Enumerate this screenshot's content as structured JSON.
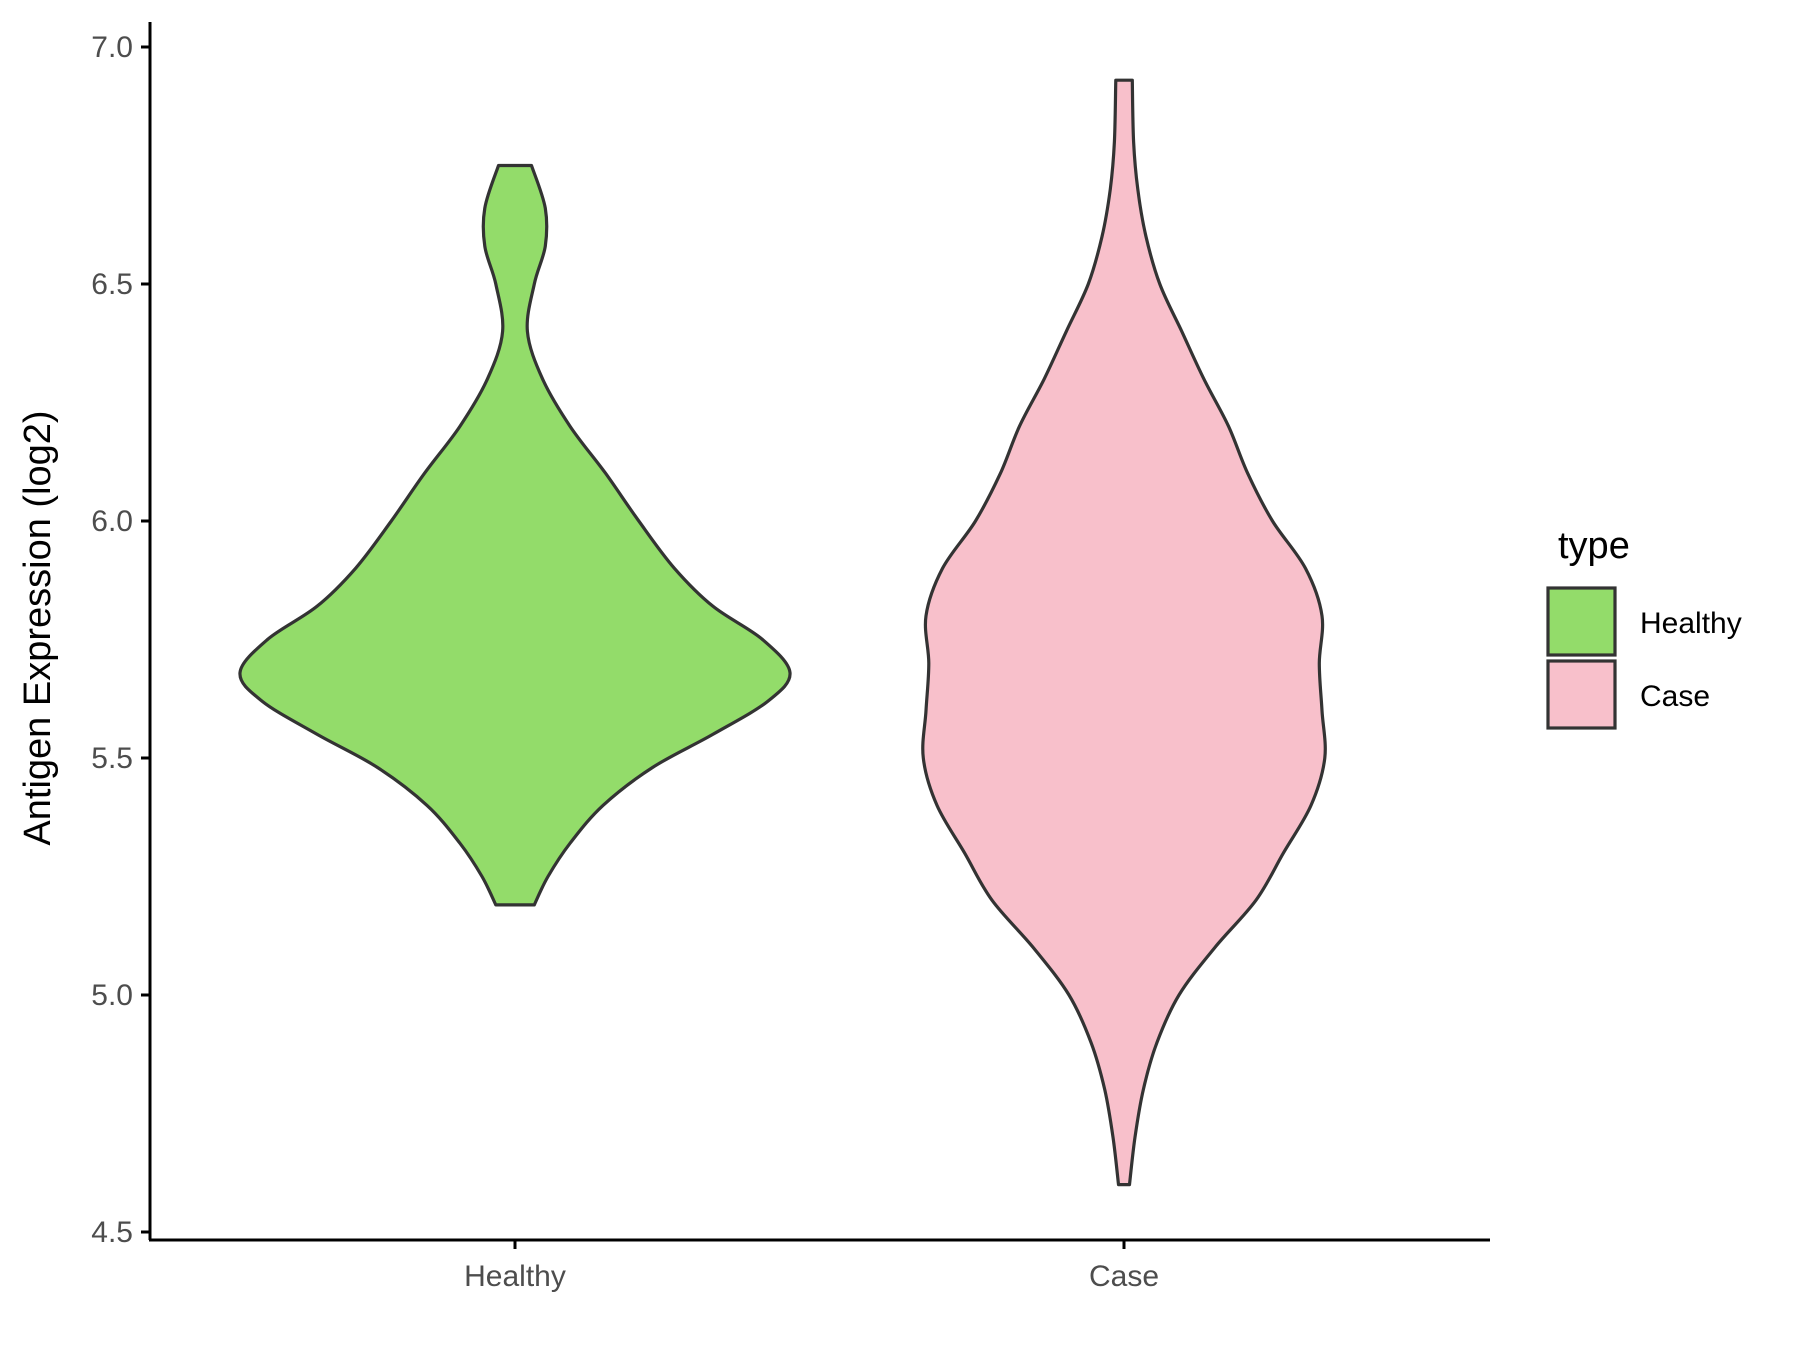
{
  "chart_data": {
    "type": "violin",
    "title": "",
    "xlabel": "",
    "ylabel": "Antigen Expression (log2)",
    "ylim": [
      4.5,
      7.0
    ],
    "yticks": [
      "4.5",
      "5.0",
      "5.5",
      "6.0",
      "6.5",
      "7.0"
    ],
    "categories": [
      "Healthy",
      "Case"
    ],
    "grid": false,
    "legend": {
      "title": "type",
      "position": "right"
    },
    "series": [
      {
        "name": "Healthy",
        "color": "#93dc6a",
        "min": 5.19,
        "max": 6.75,
        "density": [
          [
            5.19,
            0.07
          ],
          [
            5.25,
            0.12
          ],
          [
            5.32,
            0.2
          ],
          [
            5.4,
            0.32
          ],
          [
            5.48,
            0.5
          ],
          [
            5.55,
            0.72
          ],
          [
            5.62,
            0.92
          ],
          [
            5.68,
            1.0
          ],
          [
            5.75,
            0.9
          ],
          [
            5.82,
            0.72
          ],
          [
            5.9,
            0.58
          ],
          [
            6.0,
            0.45
          ],
          [
            6.1,
            0.33
          ],
          [
            6.2,
            0.2
          ],
          [
            6.3,
            0.1
          ],
          [
            6.4,
            0.045
          ],
          [
            6.5,
            0.07
          ],
          [
            6.58,
            0.11
          ],
          [
            6.66,
            0.11
          ],
          [
            6.75,
            0.06
          ]
        ]
      },
      {
        "name": "Case",
        "color": "#f8c0cb",
        "min": 4.6,
        "max": 6.93,
        "density": [
          [
            4.6,
            0.02
          ],
          [
            4.7,
            0.04
          ],
          [
            4.8,
            0.07
          ],
          [
            4.9,
            0.12
          ],
          [
            5.0,
            0.2
          ],
          [
            5.1,
            0.33
          ],
          [
            5.2,
            0.48
          ],
          [
            5.3,
            0.58
          ],
          [
            5.4,
            0.68
          ],
          [
            5.5,
            0.73
          ],
          [
            5.6,
            0.72
          ],
          [
            5.7,
            0.71
          ],
          [
            5.8,
            0.72
          ],
          [
            5.9,
            0.66
          ],
          [
            6.0,
            0.54
          ],
          [
            6.1,
            0.45
          ],
          [
            6.2,
            0.38
          ],
          [
            6.3,
            0.29
          ],
          [
            6.4,
            0.21
          ],
          [
            6.5,
            0.13
          ],
          [
            6.6,
            0.08
          ],
          [
            6.7,
            0.05
          ],
          [
            6.8,
            0.035
          ],
          [
            6.93,
            0.03
          ]
        ]
      }
    ]
  }
}
